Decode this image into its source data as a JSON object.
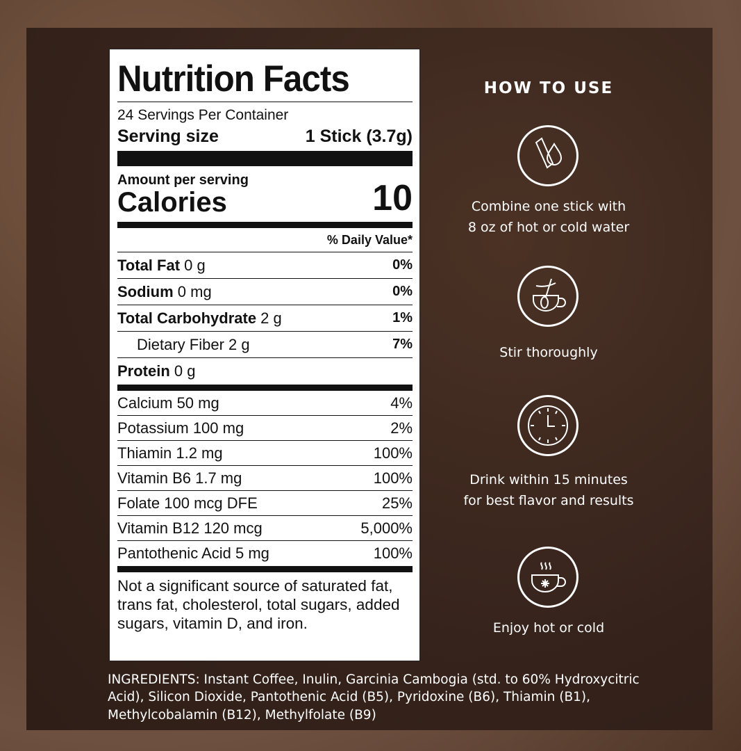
{
  "nutrition": {
    "title": "Nutrition Facts",
    "servings": "24 Servings Per Container",
    "serving_size_label": "Serving size",
    "serving_size_value": "1 Stick (3.7g)",
    "amount_per_serving": "Amount per serving",
    "calories_label": "Calories",
    "calories_value": "10",
    "daily_value_header": "% Daily Value*",
    "nutrients": [
      {
        "bold": "Total Fat",
        "amount": " 0 g",
        "pct": "0%"
      },
      {
        "bold": "Sodium",
        "amount": " 0 mg",
        "pct": "0%"
      },
      {
        "bold": "Total Carbohydrate",
        "amount": " 2 g",
        "pct": "1%"
      },
      {
        "bold": "",
        "amount": "Dietary Fiber 2 g",
        "pct": "7%"
      },
      {
        "bold": "Protein",
        "amount": " 0 g",
        "pct": ""
      }
    ],
    "vitamins": [
      {
        "name": "Calcium 50 mg",
        "pct": "4%"
      },
      {
        "name": "Potassium 100 mg",
        "pct": "2%"
      },
      {
        "name": "Thiamin 1.2 mg",
        "pct": "100%"
      },
      {
        "name": "Vitamin B6 1.7 mg",
        "pct": "100%"
      },
      {
        "name": "Folate 100 mcg DFE",
        "pct": "25%"
      },
      {
        "name": "Vitamin B12 120 mcg",
        "pct": "5,000%"
      },
      {
        "name": "Pantothenic Acid 5 mg",
        "pct": "100%"
      }
    ],
    "footnote": "Not a significant source of saturated fat, trans fat, cholesterol, total sugars, added sugars, vitamin D, and iron."
  },
  "how_to_use": {
    "title": "HOW TO USE",
    "steps": [
      {
        "icon": "stick-and-water-drop-icon",
        "line1": "Combine one stick with",
        "line2": "8 oz of hot or cold water"
      },
      {
        "icon": "cup-with-spoon-icon",
        "line1": "Stir thoroughly",
        "line2": ""
      },
      {
        "icon": "clock-icon",
        "line1": "Drink within 15 minutes",
        "line2": "for best flavor and results"
      },
      {
        "icon": "hot-cold-cup-icon",
        "line1": "Enjoy hot or cold",
        "line2": ""
      }
    ]
  },
  "ingredients": "INGREDIENTS: Instant Coffee, Inulin, Garcinia Cambogia (std. to 60% Hydroxycitric Acid), Silicon Dioxide, Pantothenic Acid (B5), Pyridoxine (B6), Thiamin (B1), Methylcobalamin (B12), Methylfolate (B9)"
}
